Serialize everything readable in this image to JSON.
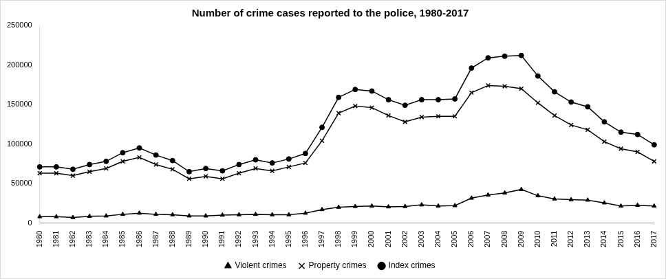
{
  "chart_data": {
    "type": "line",
    "title": "Number of crime cases reported to the police, 1980-2017",
    "categories": [
      "1980",
      "1981",
      "1982",
      "1983",
      "1984",
      "1985",
      "1986",
      "1987",
      "1988",
      "1989",
      "1990",
      "1991",
      "1992",
      "1993",
      "1994",
      "1995",
      "1996",
      "1997",
      "1998",
      "1999",
      "2000",
      "2001",
      "2002",
      "2003",
      "2004",
      "2005",
      "2006",
      "2007",
      "2008",
      "2009",
      "2010",
      "2011",
      "2012",
      "2013",
      "2014",
      "2015",
      "2016",
      "2017"
    ],
    "series": [
      {
        "name": "Violent crimes",
        "color": "#000000",
        "marker": "triangle",
        "values": [
          8000,
          8000,
          7000,
          8500,
          9000,
          11000,
          12500,
          11000,
          10500,
          9000,
          9000,
          10000,
          10500,
          11000,
          10500,
          10500,
          12500,
          17000,
          20000,
          21000,
          21500,
          20500,
          21000,
          23000,
          21500,
          22000,
          31500,
          35500,
          38000,
          42500,
          34500,
          30500,
          29500,
          29000,
          25500,
          21500,
          22500,
          21500
        ]
      },
      {
        "name": "Property crimes",
        "color": "#000000",
        "marker": "x",
        "values": [
          63000,
          63000,
          60000,
          65000,
          69000,
          78000,
          83000,
          74000,
          68000,
          56000,
          59000,
          56000,
          63000,
          69000,
          66000,
          71000,
          76000,
          104000,
          139000,
          148000,
          146000,
          136000,
          128000,
          134000,
          135000,
          135000,
          165000,
          174000,
          173000,
          170000,
          152000,
          136000,
          124000,
          118000,
          103000,
          94000,
          90000,
          78000
        ]
      },
      {
        "name": "Index crimes",
        "color": "#000000",
        "marker": "circle",
        "values": [
          71000,
          71000,
          68000,
          74000,
          78000,
          89000,
          95000,
          86000,
          79000,
          65000,
          69000,
          66000,
          74000,
          80000,
          76000,
          81000,
          88000,
          121000,
          159000,
          169000,
          167000,
          156000,
          149000,
          156000,
          156000,
          157000,
          196000,
          209000,
          211000,
          212000,
          186000,
          166000,
          153000,
          147000,
          128000,
          115000,
          112000,
          99000
        ]
      }
    ],
    "ylim": [
      0,
      250000
    ],
    "yticks": [
      0,
      50000,
      100000,
      150000,
      200000,
      250000
    ],
    "grid": false,
    "legend": "bottom"
  }
}
